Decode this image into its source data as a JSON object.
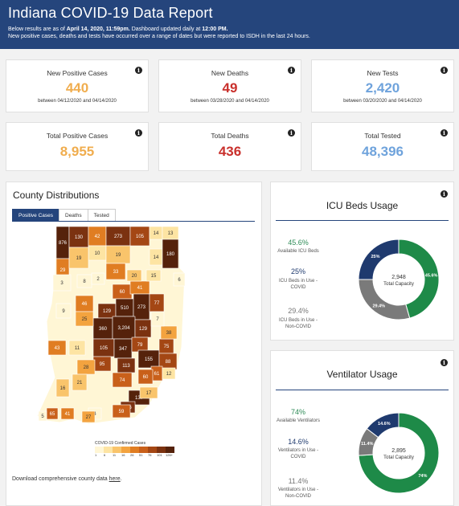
{
  "header": {
    "title": "Indiana COVID-19 Data Report",
    "line1_pre": "Below results are as of ",
    "line1_date": "April 14, 2020, 11:59pm.",
    "line1_mid": " Dashboard updated daily at ",
    "line1_time": "12:00 PM.",
    "line2": "New positive cases, deaths and tests have occurred over a range of dates but were reported to ISDH in the last 24 hours."
  },
  "stats": {
    "new_positive": {
      "title": "New Positive Cases",
      "value": "440",
      "range": "between 04/12/2020 and 04/14/2020"
    },
    "new_deaths": {
      "title": "New Deaths",
      "value": "49",
      "range": "between 03/28/2020 and 04/14/2020"
    },
    "new_tests": {
      "title": "New Tests",
      "value": "2,420",
      "range": "between 03/20/2020 and 04/14/2020"
    },
    "total_positive": {
      "title": "Total Positive Cases",
      "value": "8,955"
    },
    "total_deaths": {
      "title": "Total Deaths",
      "value": "436"
    },
    "total_tested": {
      "title": "Total Tested",
      "value": "48,396"
    }
  },
  "county": {
    "title": "County Distributions",
    "tabs": [
      "Positive Cases",
      "Deaths",
      "Tested"
    ],
    "legend_title": "COVID-19 Confirmed Cases",
    "legend_ticks": [
      "1",
      "6",
      "11",
      "16",
      "26",
      "51",
      "76",
      "101",
      "126+"
    ],
    "legend_colors": [
      "#fff6d5",
      "#fde4a3",
      "#f9c46b",
      "#f3a33f",
      "#e07d22",
      "#c9601a",
      "#a44714",
      "#7b3210",
      "#55220b"
    ],
    "download_text": "Download comprehensive county data ",
    "download_link": "here",
    "download_end": ".",
    "counties": [
      {
        "label": "876",
        "fill": "#55220b",
        "text": "#fff"
      },
      {
        "label": "130",
        "fill": "#7b3210",
        "text": "#fff"
      },
      {
        "label": "42",
        "fill": "#e07d22",
        "text": "#fff"
      },
      {
        "label": "273",
        "fill": "#7b3210",
        "text": "#fff"
      },
      {
        "label": "105",
        "fill": "#a44714",
        "text": "#fff"
      },
      {
        "label": "14",
        "fill": "#fde4a3",
        "text": "#333"
      },
      {
        "label": "13",
        "fill": "#fde4a3",
        "text": "#333"
      },
      {
        "label": "10",
        "fill": "#fde4a3",
        "text": "#333"
      },
      {
        "label": "19",
        "fill": "#f9c46b",
        "text": "#333"
      },
      {
        "label": "29",
        "fill": "#e07d22",
        "text": "#fff"
      },
      {
        "label": "19",
        "fill": "#f9c46b",
        "text": "#333"
      },
      {
        "label": "14",
        "fill": "#fde4a3",
        "text": "#333"
      },
      {
        "label": "180",
        "fill": "#55220b",
        "text": "#fff"
      },
      {
        "label": "33",
        "fill": "#e07d22",
        "text": "#fff"
      },
      {
        "label": "60",
        "fill": "#c9601a",
        "text": "#fff"
      },
      {
        "label": "41",
        "fill": "#e07d22",
        "text": "#fff"
      },
      {
        "label": "129",
        "fill": "#7b3210",
        "text": "#fff"
      },
      {
        "label": "510",
        "fill": "#55220b",
        "text": "#fff"
      },
      {
        "label": "273",
        "fill": "#55220b",
        "text": "#fff"
      },
      {
        "label": "77",
        "fill": "#a44714",
        "text": "#fff"
      },
      {
        "label": "360",
        "fill": "#55220b",
        "text": "#fff"
      },
      {
        "label": "3,204",
        "fill": "#55220b",
        "text": "#fff"
      },
      {
        "label": "129",
        "fill": "#7b3210",
        "text": "#fff"
      },
      {
        "label": "105",
        "fill": "#7b3210",
        "text": "#fff"
      },
      {
        "label": "347",
        "fill": "#55220b",
        "text": "#fff"
      },
      {
        "label": "79",
        "fill": "#a44714",
        "text": "#fff"
      },
      {
        "label": "155",
        "fill": "#55220b",
        "text": "#fff"
      },
      {
        "label": "75",
        "fill": "#a44714",
        "text": "#fff"
      },
      {
        "label": "95",
        "fill": "#a44714",
        "text": "#fff"
      },
      {
        "label": "113",
        "fill": "#7b3210",
        "text": "#fff"
      },
      {
        "label": "88",
        "fill": "#a44714",
        "text": "#fff"
      },
      {
        "label": "61",
        "fill": "#c9601a",
        "text": "#fff"
      },
      {
        "label": "74",
        "fill": "#c9601a",
        "text": "#fff"
      },
      {
        "label": "60",
        "fill": "#c9601a",
        "text": "#fff"
      },
      {
        "label": "137",
        "fill": "#55220b",
        "text": "#fff"
      },
      {
        "label": "116",
        "fill": "#7b3210",
        "text": "#fff"
      },
      {
        "label": "59",
        "fill": "#c9601a",
        "text": "#fff"
      },
      {
        "label": "65",
        "fill": "#c9601a",
        "text": "#fff"
      },
      {
        "label": "41",
        "fill": "#e07d22",
        "text": "#fff"
      },
      {
        "label": "43",
        "fill": "#e07d22",
        "text": "#fff"
      },
      {
        "label": "46",
        "fill": "#e07d22",
        "text": "#fff"
      },
      {
        "label": "25",
        "fill": "#f3a33f",
        "text": "#333"
      },
      {
        "label": "28",
        "fill": "#f3a33f",
        "text": "#333"
      },
      {
        "label": "38",
        "fill": "#f3a33f",
        "text": "#333"
      },
      {
        "label": "17",
        "fill": "#f9c46b",
        "text": "#333"
      },
      {
        "label": "11",
        "fill": "#fde4a3",
        "text": "#333"
      },
      {
        "label": "16",
        "fill": "#f9c46b",
        "text": "#333"
      },
      {
        "label": "21",
        "fill": "#f9c46b",
        "text": "#333"
      },
      {
        "label": "5",
        "fill": "#fff6d5",
        "text": "#333"
      },
      {
        "label": "4",
        "fill": "#fff6d5",
        "text": "#333"
      },
      {
        "label": "7",
        "fill": "#fff6d5",
        "text": "#333"
      },
      {
        "label": "6",
        "fill": "#fff6d5",
        "text": "#333"
      },
      {
        "label": "3",
        "fill": "#fff6d5",
        "text": "#333"
      },
      {
        "label": "12",
        "fill": "#fde4a3",
        "text": "#333"
      },
      {
        "label": "15",
        "fill": "#fde4a3",
        "text": "#333"
      },
      {
        "label": "27",
        "fill": "#f3a33f",
        "text": "#333"
      },
      {
        "label": "20",
        "fill": "#f9c46b",
        "text": "#333"
      },
      {
        "label": "8",
        "fill": "#fff6d5",
        "text": "#333"
      },
      {
        "label": "9",
        "fill": "#fff6d5",
        "text": "#333"
      },
      {
        "label": "2",
        "fill": "#fff6d5",
        "text": "#333"
      }
    ]
  },
  "icu": {
    "title": "ICU Beds Usage",
    "metrics": [
      {
        "pct": "45.6%",
        "label": "Available ICU Beds"
      },
      {
        "pct": "25%",
        "label": "ICU Beds in Use - COVID"
      },
      {
        "pct": "29.4%",
        "label": "ICU Beds in Use - Non-COVID"
      }
    ],
    "center_value": "2,948",
    "center_label": "Total Capacity",
    "slices": [
      {
        "pct": 45.6,
        "label": "45.6%",
        "color": "#1e8a48"
      },
      {
        "pct": 29.4,
        "label": "29.4%",
        "color": "#7a7a7a"
      },
      {
        "pct": 25.0,
        "label": "25%",
        "color": "#1f3a6e"
      }
    ]
  },
  "vent": {
    "title": "Ventilator Usage",
    "metrics": [
      {
        "pct": "74%",
        "label": "Available Ventilators"
      },
      {
        "pct": "14.6%",
        "label": "Ventilators in Use - COVID"
      },
      {
        "pct": "11.4%",
        "label": "Ventilators in Use - Non-COVID"
      }
    ],
    "center_value": "2,895",
    "center_label": "Total Capacity",
    "slices": [
      {
        "pct": 74.0,
        "label": "74%",
        "color": "#1e8a48"
      },
      {
        "pct": 11.4,
        "label": "11.4%",
        "color": "#7a7a7a"
      },
      {
        "pct": 14.6,
        "label": "14.6%",
        "color": "#1f3a6e"
      }
    ]
  },
  "info_glyph": "i"
}
